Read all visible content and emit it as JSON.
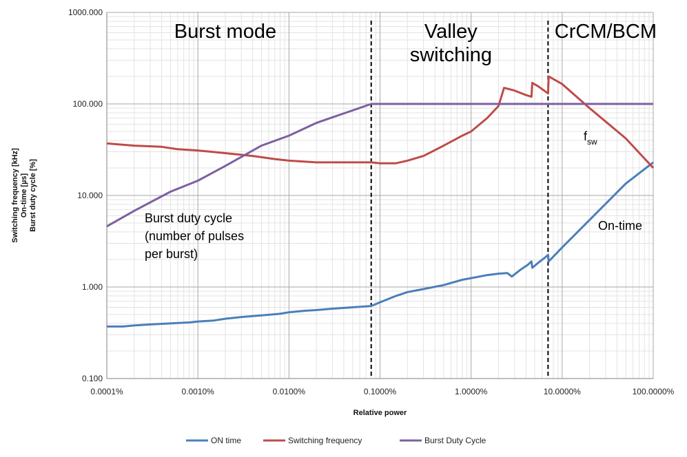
{
  "chart_data": {
    "type": "line",
    "x_scale": "log",
    "y_scale": "log",
    "xlabel": "Relative power",
    "ylabel_lines": [
      "Switching frequency [kHz]",
      "On-time [µs]",
      "Burst duty cycle [%]"
    ],
    "xlim": [
      0.0001,
      100
    ],
    "ylim": [
      0.1,
      1000
    ],
    "x_ticks": [
      0.0001,
      0.001,
      0.01,
      0.1,
      1,
      10,
      100
    ],
    "x_tick_labels": [
      "0.0001%",
      "0.0010%",
      "0.0100%",
      "0.1000%",
      "1.0000%",
      "10.0000%",
      "100.0000%"
    ],
    "y_ticks": [
      0.1,
      1,
      10,
      100,
      1000
    ],
    "y_tick_labels": [
      "0.100",
      "1.000",
      "10.000",
      "100.000",
      "1000.000"
    ],
    "grid": true,
    "legend_position": "bottom",
    "vlines": [
      0.08,
      7.0
    ],
    "regions": [
      {
        "lines": [
          "Burst mode"
        ],
        "x": 0.002
      },
      {
        "lines": [
          "Valley",
          "switching"
        ],
        "x": 0.6
      },
      {
        "lines": [
          "CrCM/BCM"
        ],
        "x": 30
      }
    ],
    "annotations": {
      "burst_duty": [
        "Burst duty cycle",
        "(number of pulses",
        "per burst)"
      ],
      "fsw_main": "f",
      "fsw_sub": "sw",
      "on_time": "On-time"
    },
    "series": [
      {
        "name": "ON time",
        "color": "#4a7ebb",
        "points": [
          [
            0.0001,
            0.37
          ],
          [
            0.00015,
            0.37
          ],
          [
            0.0002,
            0.38
          ],
          [
            0.0003,
            0.39
          ],
          [
            0.0005,
            0.4
          ],
          [
            0.0008,
            0.41
          ],
          [
            0.001,
            0.42
          ],
          [
            0.0015,
            0.43
          ],
          [
            0.002,
            0.45
          ],
          [
            0.003,
            0.47
          ],
          [
            0.005,
            0.49
          ],
          [
            0.008,
            0.51
          ],
          [
            0.01,
            0.53
          ],
          [
            0.015,
            0.55
          ],
          [
            0.02,
            0.56
          ],
          [
            0.03,
            0.58
          ],
          [
            0.05,
            0.6
          ],
          [
            0.08,
            0.62
          ],
          [
            0.1,
            0.68
          ],
          [
            0.15,
            0.8
          ],
          [
            0.2,
            0.88
          ],
          [
            0.3,
            0.95
          ],
          [
            0.5,
            1.05
          ],
          [
            0.8,
            1.2
          ],
          [
            1.0,
            1.25
          ],
          [
            1.5,
            1.35
          ],
          [
            2.0,
            1.4
          ],
          [
            2.5,
            1.42
          ],
          [
            2.8,
            1.3
          ],
          [
            3.5,
            1.55
          ],
          [
            4.2,
            1.75
          ],
          [
            4.6,
            1.9
          ],
          [
            4.7,
            1.62
          ],
          [
            5.5,
            1.85
          ],
          [
            6.5,
            2.1
          ],
          [
            7.0,
            2.25
          ],
          [
            7.1,
            1.9
          ],
          [
            10,
            2.7
          ],
          [
            20,
            5.4
          ],
          [
            50,
            13.5
          ],
          [
            100,
            23.0
          ]
        ]
      },
      {
        "name": "Switching frequency",
        "color": "#be4b48",
        "points": [
          [
            0.0001,
            37
          ],
          [
            0.0002,
            35
          ],
          [
            0.0004,
            34
          ],
          [
            0.0006,
            32
          ],
          [
            0.001,
            31
          ],
          [
            0.002,
            29
          ],
          [
            0.004,
            27
          ],
          [
            0.007,
            25
          ],
          [
            0.01,
            24
          ],
          [
            0.02,
            23
          ],
          [
            0.05,
            23
          ],
          [
            0.08,
            23
          ],
          [
            0.1,
            22.5
          ],
          [
            0.15,
            22.5
          ],
          [
            0.2,
            24
          ],
          [
            0.3,
            27
          ],
          [
            0.5,
            35
          ],
          [
            0.8,
            45
          ],
          [
            1.0,
            50
          ],
          [
            1.5,
            70
          ],
          [
            2.0,
            95
          ],
          [
            2.3,
            150
          ],
          [
            3.0,
            140
          ],
          [
            4.0,
            125
          ],
          [
            4.6,
            120
          ],
          [
            4.7,
            170
          ],
          [
            5.5,
            155
          ],
          [
            7.0,
            130
          ],
          [
            7.1,
            200
          ],
          [
            10,
            165
          ],
          [
            20,
            90
          ],
          [
            50,
            42
          ],
          [
            100,
            20
          ]
        ]
      },
      {
        "name": "Burst Duty Cycle",
        "color": "#7d5fa0",
        "points": [
          [
            0.0001,
            4.6
          ],
          [
            0.0002,
            6.8
          ],
          [
            0.0005,
            11
          ],
          [
            0.001,
            14.5
          ],
          [
            0.002,
            21
          ],
          [
            0.005,
            35
          ],
          [
            0.01,
            45
          ],
          [
            0.02,
            62
          ],
          [
            0.05,
            85
          ],
          [
            0.08,
            100
          ],
          [
            0.1,
            100
          ],
          [
            1,
            100
          ],
          [
            10,
            100
          ],
          [
            100,
            100
          ]
        ]
      }
    ]
  }
}
